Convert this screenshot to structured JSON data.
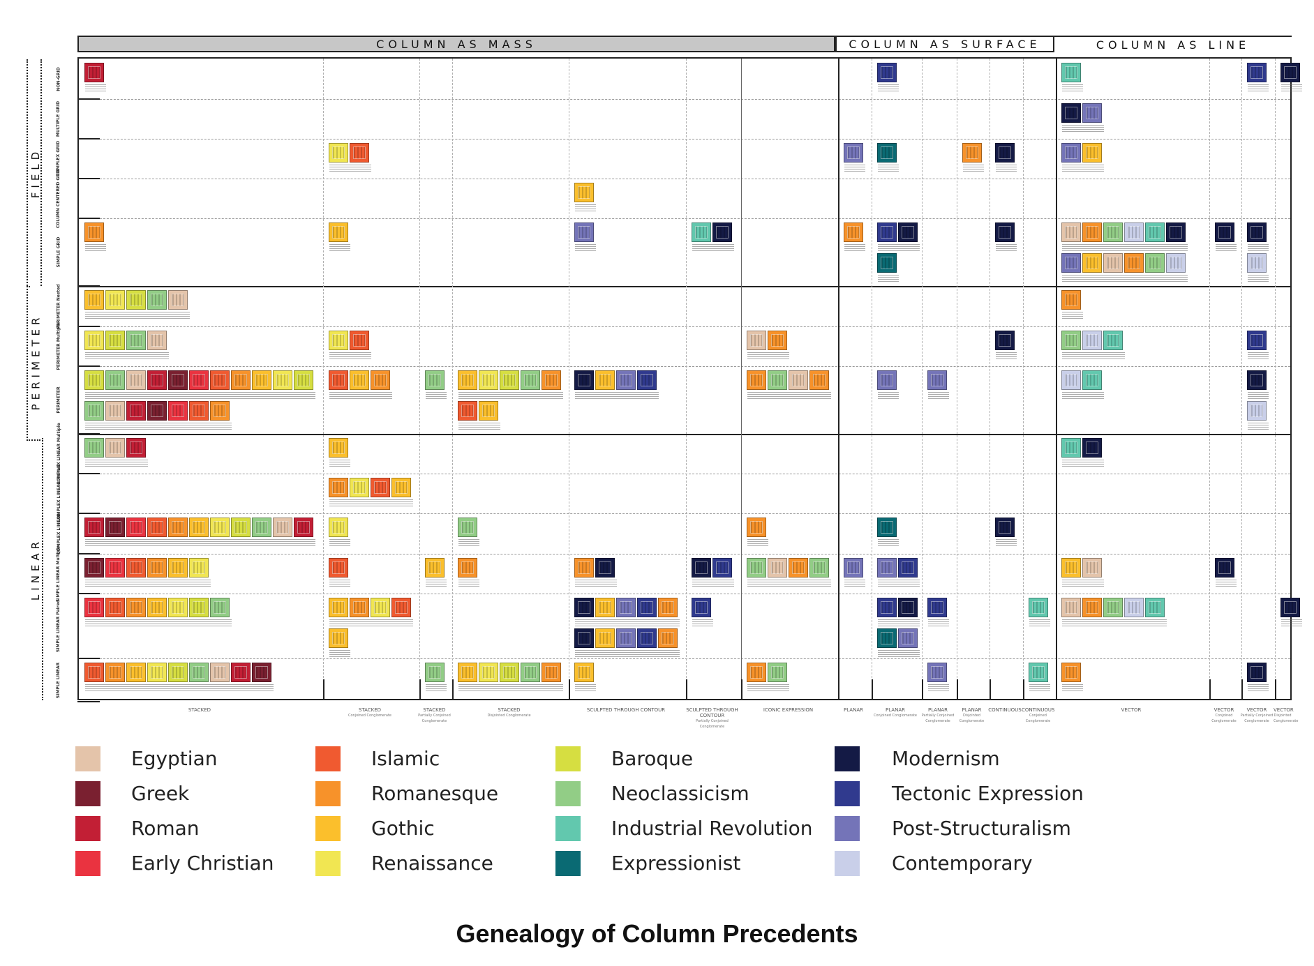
{
  "title": "Genealogy of Column Precedents",
  "headers": {
    "mass": "COLUMN AS MASS",
    "surface": "COLUMN AS SURFACE",
    "line": "COLUMN AS LINE"
  },
  "groups": {
    "field": "FIELD",
    "perimeter": "PERIMETER",
    "linear": "LINEAR"
  },
  "rows": [
    {
      "label": "NON-GRID"
    },
    {
      "label": "MULTIPLE GRID"
    },
    {
      "label": "COMPLEX GRID"
    },
    {
      "label": "COLUMN CENTERED GRID"
    },
    {
      "label": "SIMPLE GRID"
    },
    {
      "label": "PERIMETER Nested"
    },
    {
      "label": "PERIMETER Multiple"
    },
    {
      "label": "PERIMETER"
    },
    {
      "label": "COMPLEX LINEAR Multiple"
    },
    {
      "label": "COMPLEX LINEAR Paired"
    },
    {
      "label": "COMPLEX LINEAR"
    },
    {
      "label": "SIMPLE LINEAR Multiple"
    },
    {
      "label": "SIMPLE LINEAR Paired"
    },
    {
      "label": "SIMPLE LINEAR"
    }
  ],
  "columns": [
    {
      "label": "STACKED",
      "sub": ""
    },
    {
      "label": "STACKED",
      "sub": "Conjoined Conglomerate"
    },
    {
      "label": "STACKED",
      "sub": "Partially Conjoined Conglomerate"
    },
    {
      "label": "STACKED",
      "sub": "Disjointed Conglomerate"
    },
    {
      "label": "SCULPTED THROUGH CONTOUR",
      "sub": ""
    },
    {
      "label": "SCULPTED THROUGH CONTOUR",
      "sub": "Partially Conjoined Conglomerate"
    },
    {
      "label": "ICONIC EXPRESSION",
      "sub": ""
    },
    {
      "label": "PLANAR",
      "sub": ""
    },
    {
      "label": "PLANAR",
      "sub": "Conjoined Conglomerate"
    },
    {
      "label": "PLANAR",
      "sub": "Partially Conjoined Conglomerate"
    },
    {
      "label": "PLANAR",
      "sub": "Disjointed Conglomerate"
    },
    {
      "label": "CONTINUOUS",
      "sub": ""
    },
    {
      "label": "CONTINUOUS",
      "sub": "Conjoined Conglomerate"
    },
    {
      "label": "VECTOR",
      "sub": ""
    },
    {
      "label": "VECTOR",
      "sub": "Conjoined Conglomerate"
    },
    {
      "label": "VECTOR",
      "sub": "Partially Conjoined Conglomerate"
    },
    {
      "label": "VECTOR",
      "sub": "Disjointed Conglomerate"
    }
  ],
  "legend": [
    {
      "label": "Egyptian",
      "color": "#e4c4aa"
    },
    {
      "label": "Greek",
      "color": "#7a2030"
    },
    {
      "label": "Roman",
      "color": "#c21f35"
    },
    {
      "label": "Early Christian",
      "color": "#ea3340"
    },
    {
      "label": "Islamic",
      "color": "#f05a30"
    },
    {
      "label": "Romanesque",
      "color": "#f7922a"
    },
    {
      "label": "Gothic",
      "color": "#fbbf2c"
    },
    {
      "label": "Renaissance",
      "color": "#f1e652"
    },
    {
      "label": "Baroque",
      "color": "#d6de41"
    },
    {
      "label": "Neoclassicism",
      "color": "#92cd86"
    },
    {
      "label": "Industrial Revolution",
      "color": "#62c8ae"
    },
    {
      "label": "Expressionist",
      "color": "#0a6a73"
    },
    {
      "label": "Modernism",
      "color": "#141a45"
    },
    {
      "label": "Tectonic Expression",
      "color": "#303a8e"
    },
    {
      "label": "Post-Structuralism",
      "color": "#7474b8"
    },
    {
      "label": "Contemporary",
      "color": "#c9cfe9"
    }
  ],
  "precedent_counts": [
    {
      "row": "NON-GRID",
      "cells": [
        1,
        0,
        0,
        0,
        0,
        0,
        0,
        0,
        1,
        0,
        0,
        0,
        0,
        1,
        0,
        1,
        1
      ]
    },
    {
      "row": "MULTIPLE GRID",
      "cells": [
        0,
        0,
        0,
        0,
        0,
        0,
        0,
        0,
        0,
        0,
        0,
        0,
        0,
        2,
        0,
        0,
        0
      ]
    },
    {
      "row": "COMPLEX GRID",
      "cells": [
        0,
        2,
        0,
        0,
        0,
        0,
        0,
        1,
        1,
        0,
        1,
        1,
        0,
        2,
        0,
        0,
        0
      ]
    },
    {
      "row": "COLUMN CENTERED GRID",
      "cells": [
        0,
        0,
        0,
        0,
        1,
        0,
        0,
        0,
        0,
        0,
        0,
        0,
        0,
        0,
        0,
        0,
        0
      ]
    },
    {
      "row": "SIMPLE GRID",
      "cells": [
        1,
        1,
        0,
        0,
        1,
        2,
        0,
        1,
        3,
        0,
        0,
        1,
        0,
        12,
        1,
        2,
        0
      ]
    },
    {
      "row": "PERIMETER Nested",
      "cells": [
        5,
        0,
        0,
        0,
        0,
        0,
        0,
        0,
        0,
        0,
        0,
        0,
        0,
        1,
        0,
        0,
        0
      ]
    },
    {
      "row": "PERIMETER Multiple",
      "cells": [
        4,
        2,
        0,
        0,
        0,
        0,
        2,
        0,
        0,
        0,
        0,
        1,
        0,
        3,
        0,
        1,
        0
      ]
    },
    {
      "row": "PERIMETER",
      "cells": [
        18,
        3,
        1,
        7,
        4,
        0,
        4,
        0,
        1,
        1,
        0,
        0,
        0,
        2,
        0,
        2,
        0
      ]
    },
    {
      "row": "COMPLEX LINEAR Multiple",
      "cells": [
        3,
        1,
        0,
        0,
        0,
        0,
        0,
        0,
        0,
        0,
        0,
        0,
        0,
        2,
        0,
        0,
        0
      ]
    },
    {
      "row": "COMPLEX LINEAR Paired",
      "cells": [
        0,
        4,
        0,
        0,
        0,
        0,
        0,
        0,
        0,
        0,
        0,
        0,
        0,
        0,
        0,
        0,
        0
      ]
    },
    {
      "row": "COMPLEX LINEAR",
      "cells": [
        11,
        1,
        0,
        1,
        0,
        0,
        1,
        0,
        1,
        0,
        0,
        1,
        0,
        0,
        0,
        0,
        0
      ]
    },
    {
      "row": "SIMPLE LINEAR Multiple",
      "cells": [
        6,
        1,
        1,
        1,
        2,
        2,
        4,
        1,
        2,
        0,
        0,
        0,
        0,
        2,
        1,
        0,
        0
      ]
    },
    {
      "row": "SIMPLE LINEAR Paired",
      "cells": [
        7,
        5,
        0,
        0,
        10,
        1,
        0,
        0,
        4,
        1,
        0,
        0,
        1,
        5,
        0,
        0,
        1
      ]
    },
    {
      "row": "SIMPLE LINEAR",
      "cells": [
        9,
        0,
        1,
        5,
        1,
        0,
        2,
        0,
        0,
        1,
        0,
        0,
        1,
        1,
        0,
        1,
        0
      ]
    }
  ]
}
